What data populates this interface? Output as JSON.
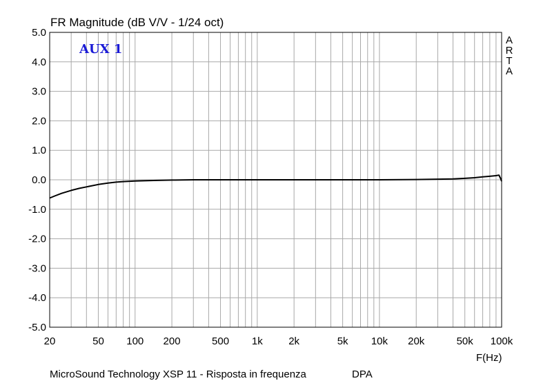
{
  "chart_data": {
    "type": "line",
    "title": "FR Magnitude (dB V/V - 1/24 oct)",
    "xlabel": "F(Hz)",
    "ylabel": "",
    "xscale": "log",
    "xlim": [
      20,
      100000
    ],
    "ylim": [
      -5.0,
      5.0
    ],
    "grid": true,
    "x_ticks": [
      20,
      50,
      100,
      200,
      500,
      1000,
      2000,
      5000,
      10000,
      20000,
      50000,
      100000
    ],
    "x_tick_labels": [
      "20",
      "50",
      "100",
      "200",
      "500",
      "1k",
      "2k",
      "5k",
      "10k",
      "20k",
      "50k",
      "100k"
    ],
    "y_ticks": [
      5,
      4,
      3,
      2,
      1,
      0,
      -1,
      -2,
      -3,
      -4,
      -5
    ],
    "y_tick_labels": [
      "5.0",
      "4.0",
      "3.0",
      "2.0",
      "1.0",
      "0.0",
      "-1.0",
      "-2.0",
      "-3.0",
      "-4.0",
      "-5.0"
    ],
    "annotation": "AUX 1",
    "brand": "ARTA",
    "footer": "MicroSound Technology XSP 11 - Risposta in frequenza",
    "footer_right": "DPA",
    "series": [
      {
        "color": "#000000",
        "x": [
          20,
          22,
          25,
          30,
          35,
          40,
          50,
          60,
          70,
          80,
          100,
          150,
          200,
          300,
          500,
          1000,
          2000,
          5000,
          10000,
          20000,
          30000,
          40000,
          50000,
          60000,
          70000,
          80000,
          90000,
          95000,
          98000,
          100000
        ],
        "y": [
          -0.62,
          -0.55,
          -0.46,
          -0.36,
          -0.29,
          -0.24,
          -0.16,
          -0.11,
          -0.08,
          -0.06,
          -0.04,
          -0.02,
          -0.01,
          0.0,
          0.0,
          0.0,
          0.0,
          0.0,
          0.0,
          0.01,
          0.02,
          0.03,
          0.05,
          0.07,
          0.1,
          0.12,
          0.14,
          0.16,
          0.05,
          -0.05
        ]
      }
    ]
  }
}
